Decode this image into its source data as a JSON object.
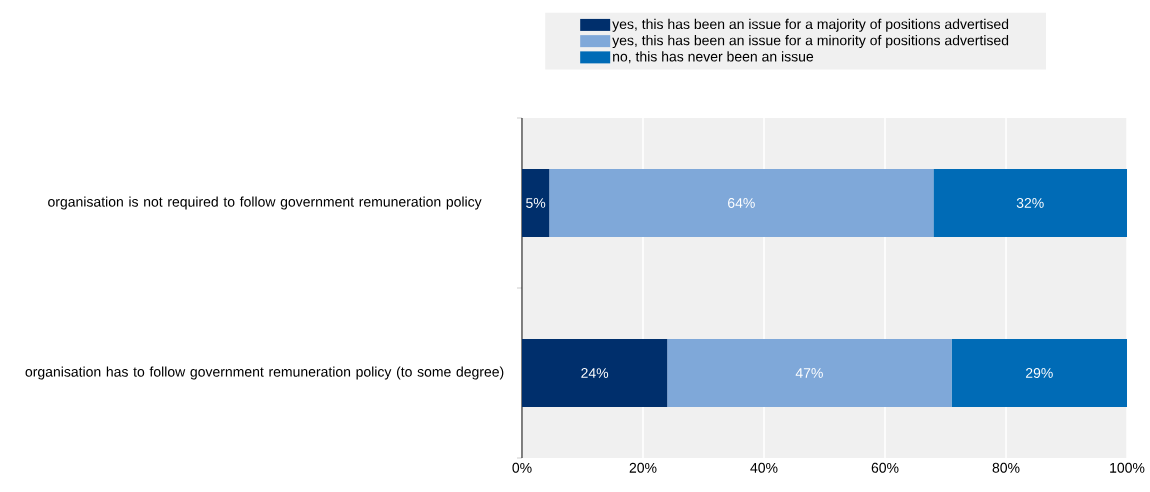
{
  "chart_data": {
    "type": "bar",
    "orientation": "horizontal",
    "stacked": true,
    "categories": [
      "organisation is not required to follow government remuneration policy",
      "organisation has to follow government remuneration policy (to some degree)"
    ],
    "series": [
      {
        "name": "yes, this has been an issue for a majority of positions advertised",
        "color": "#002f6c",
        "values": [
          4.5,
          24
        ],
        "value_labels": [
          "5%",
          "24%"
        ]
      },
      {
        "name": "yes, this has been an issue for a minority of positions advertised",
        "color": "#7fa8d9",
        "values": [
          63.5,
          47
        ],
        "value_labels": [
          "64%",
          "47%"
        ]
      },
      {
        "name": "no, this has never been an issue",
        "color": "#006bb6",
        "values": [
          32,
          29
        ],
        "value_labels": [
          "32%",
          "29%"
        ]
      }
    ],
    "xlim": [
      0,
      100
    ],
    "xticks": [
      {
        "value": 0,
        "label": "0%"
      },
      {
        "value": 20,
        "label": "20%"
      },
      {
        "value": 40,
        "label": "40%"
      },
      {
        "value": 60,
        "label": "60%"
      },
      {
        "value": 80,
        "label": "80%"
      },
      {
        "value": 100,
        "label": "100%"
      }
    ],
    "grid": "x",
    "legend": "top"
  }
}
